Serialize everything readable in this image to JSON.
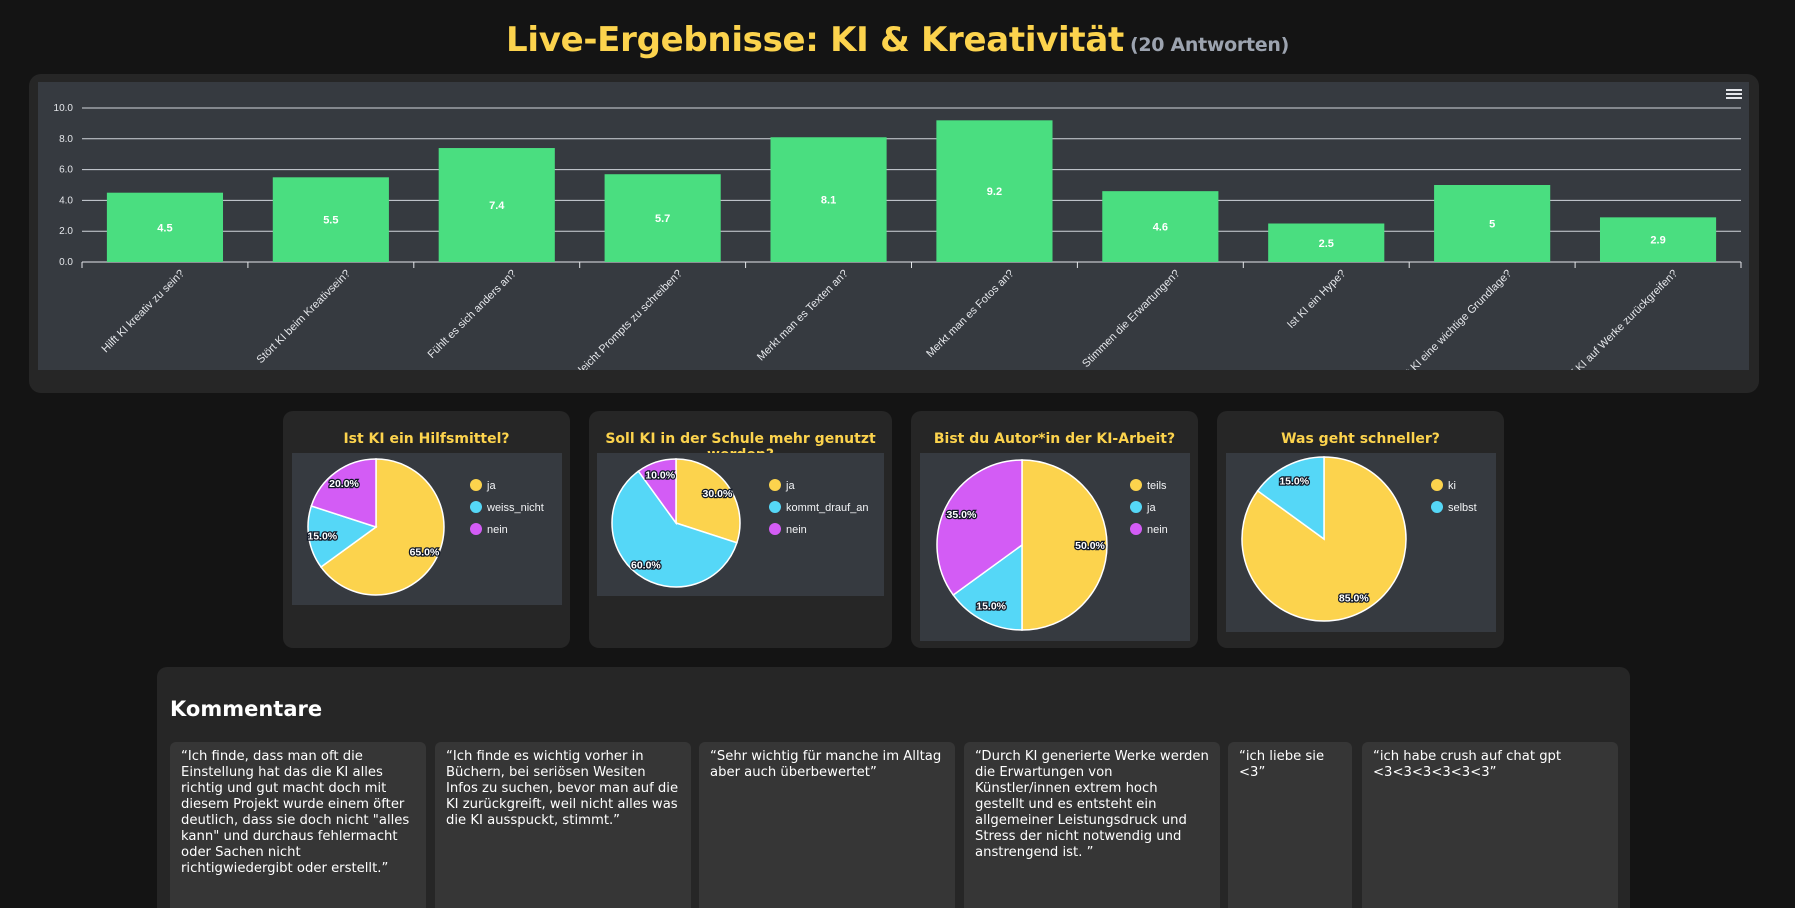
{
  "header": {
    "title": "Live-Ergebnisse: KI & Kreativität",
    "subtitle": "(20 Antworten)"
  },
  "chart_data": [
    {
      "type": "bar",
      "categories": [
        "Hilft KI kreativ zu sein?",
        "Stört KI beim Kreativsein?",
        "Fühlt es sich anders an?",
        "Ist es leicht Prompts zu schreiben?",
        "Merkt man es Texten an?",
        "Merkt man es Fotos an?",
        "Stimmen die Erwartungen?",
        "Ist KI ein Hype?",
        "Ist KI eine wichtige Grundlage?",
        "Darf KI auf Werke zurückgreifen?"
      ],
      "values": [
        4.5,
        5.5,
        7.4,
        5.7,
        8.1,
        9.2,
        4.6,
        2.5,
        5,
        2.9
      ],
      "value_labels": [
        "4.5",
        "5.5",
        "7.4",
        "5.7",
        "8.1",
        "9.2",
        "4.6",
        "2.5",
        "5",
        "2.9"
      ],
      "yticks": [
        "0.0",
        "2.0",
        "4.0",
        "6.0",
        "8.0",
        "10.0"
      ],
      "ylim": [
        0,
        10
      ],
      "grid": true,
      "color": "#4ade80"
    },
    {
      "type": "pie",
      "title": "Ist KI ein Hilfsmittel?",
      "labels": [
        "ja",
        "weiss_nicht",
        "nein"
      ],
      "values": [
        65.0,
        15.0,
        20.0
      ],
      "value_labels": [
        "65.0%",
        "15.0%",
        "20.0%"
      ],
      "colors": [
        "#fcd34d",
        "#55d7f7",
        "#d35cf5"
      ],
      "legend": "right"
    },
    {
      "type": "pie",
      "title": "Soll KI in der Schule mehr genutzt werden?",
      "labels": [
        "ja",
        "kommt_drauf_an",
        "nein"
      ],
      "values": [
        30.0,
        60.0,
        10.0
      ],
      "value_labels": [
        "30.0%",
        "60.0%",
        "10.0%"
      ],
      "colors": [
        "#fcd34d",
        "#55d7f7",
        "#d35cf5"
      ],
      "legend": "right"
    },
    {
      "type": "pie",
      "title": "Bist du Autor*in der KI-Arbeit?",
      "labels": [
        "teils",
        "ja",
        "nein"
      ],
      "values": [
        50.0,
        15.0,
        35.0
      ],
      "value_labels": [
        "50.0%",
        "15.0%",
        "35.0%"
      ],
      "colors": [
        "#fcd34d",
        "#55d7f7",
        "#d35cf5"
      ],
      "legend": "right"
    },
    {
      "type": "pie",
      "title": "Was geht schneller?",
      "labels": [
        "ki",
        "selbst"
      ],
      "values": [
        85.0,
        15.0
      ],
      "value_labels": [
        "85.0%",
        "15.0%"
      ],
      "colors": [
        "#fcd34d",
        "#55d7f7"
      ],
      "legend": "right"
    }
  ],
  "comments": {
    "heading": "Kommentare",
    "items": [
      "“Ich finde, dass man oft die Einstellung hat das die KI alles richtig und gut macht doch mit diesem Projekt wurde einem öfter deutlich, dass sie doch nicht \"alles kann\" und durchaus fehlermacht oder Sachen nicht richtigwiedergibt oder erstellt.”",
      "“Ich finde es wichtig vorher in Büchern, bei seriösen Wesiten Infos zu suchen, bevor man auf die KI zurückgreift, weil nicht alles was die KI ausspuckt, stimmt.”",
      "“Sehr wichtig für manche im Alltag aber auch überbewertet”",
      "“Durch KI generierte Werke werden die Erwartungen von Künstler/innen extrem hoch gestellt und es entsteht ein allgemeiner Leistungsdruck und Stress der nicht notwendig und anstrengend ist. ”",
      "“ich liebe sie <3”",
      "“ich habe crush auf chat gpt <3<3<3<3<3<3”"
    ]
  }
}
